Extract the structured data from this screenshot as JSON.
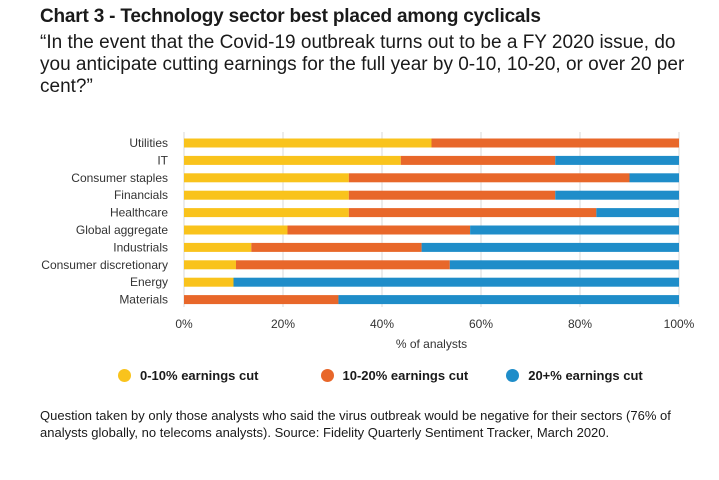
{
  "title": "Chart 3 - Technology sector best placed among cyclicals",
  "subtitle": "“In the event that the Covid-19 outbreak turns out to be a FY 2020 issue, do you anticipate cutting earnings for the full year by 0-10, 10-20, or over 20 per cent?”",
  "footnote": "Question taken by only those analysts who said the virus outbreak would be negative for their sectors (76% of analysts globally, no telecoms analysts). Source: Fidelity Quarterly Sentiment Tracker, March 2020.",
  "colors": {
    "series1": "#f9c31c",
    "series2": "#e8672a",
    "series3": "#1f8dc9",
    "grid": "#d9d9d9"
  },
  "chart_data": {
    "type": "bar",
    "orientation": "horizontal",
    "stacked": true,
    "title": "Chart 3 - Technology sector best placed among cyclicals",
    "xlabel": "% of analysts",
    "ylabel": "",
    "xlim": [
      0,
      100
    ],
    "xticks": [
      "0%",
      "20%",
      "40%",
      "60%",
      "80%",
      "100%"
    ],
    "grid": true,
    "legend_position": "bottom",
    "categories": [
      "Utilities",
      "IT",
      "Consumer staples",
      "Financials",
      "Healthcare",
      "Global aggregate",
      "Industrials",
      "Consumer discretionary",
      "Energy",
      "Materials"
    ],
    "series": [
      {
        "name": "0-10% earnings cut",
        "values": [
          50,
          43.8,
          33.3,
          33.3,
          33.3,
          20.9,
          13.6,
          10.5,
          10,
          0
        ]
      },
      {
        "name": "10-20% earnings cut",
        "values": [
          50,
          31.2,
          56.7,
          41.7,
          50,
          36.9,
          34.4,
          43.2,
          0,
          31.2
        ]
      },
      {
        "name": "20+% earnings cut",
        "values": [
          0,
          25,
          10,
          25,
          16.7,
          42.2,
          52,
          46.3,
          90,
          68.8
        ]
      }
    ]
  }
}
